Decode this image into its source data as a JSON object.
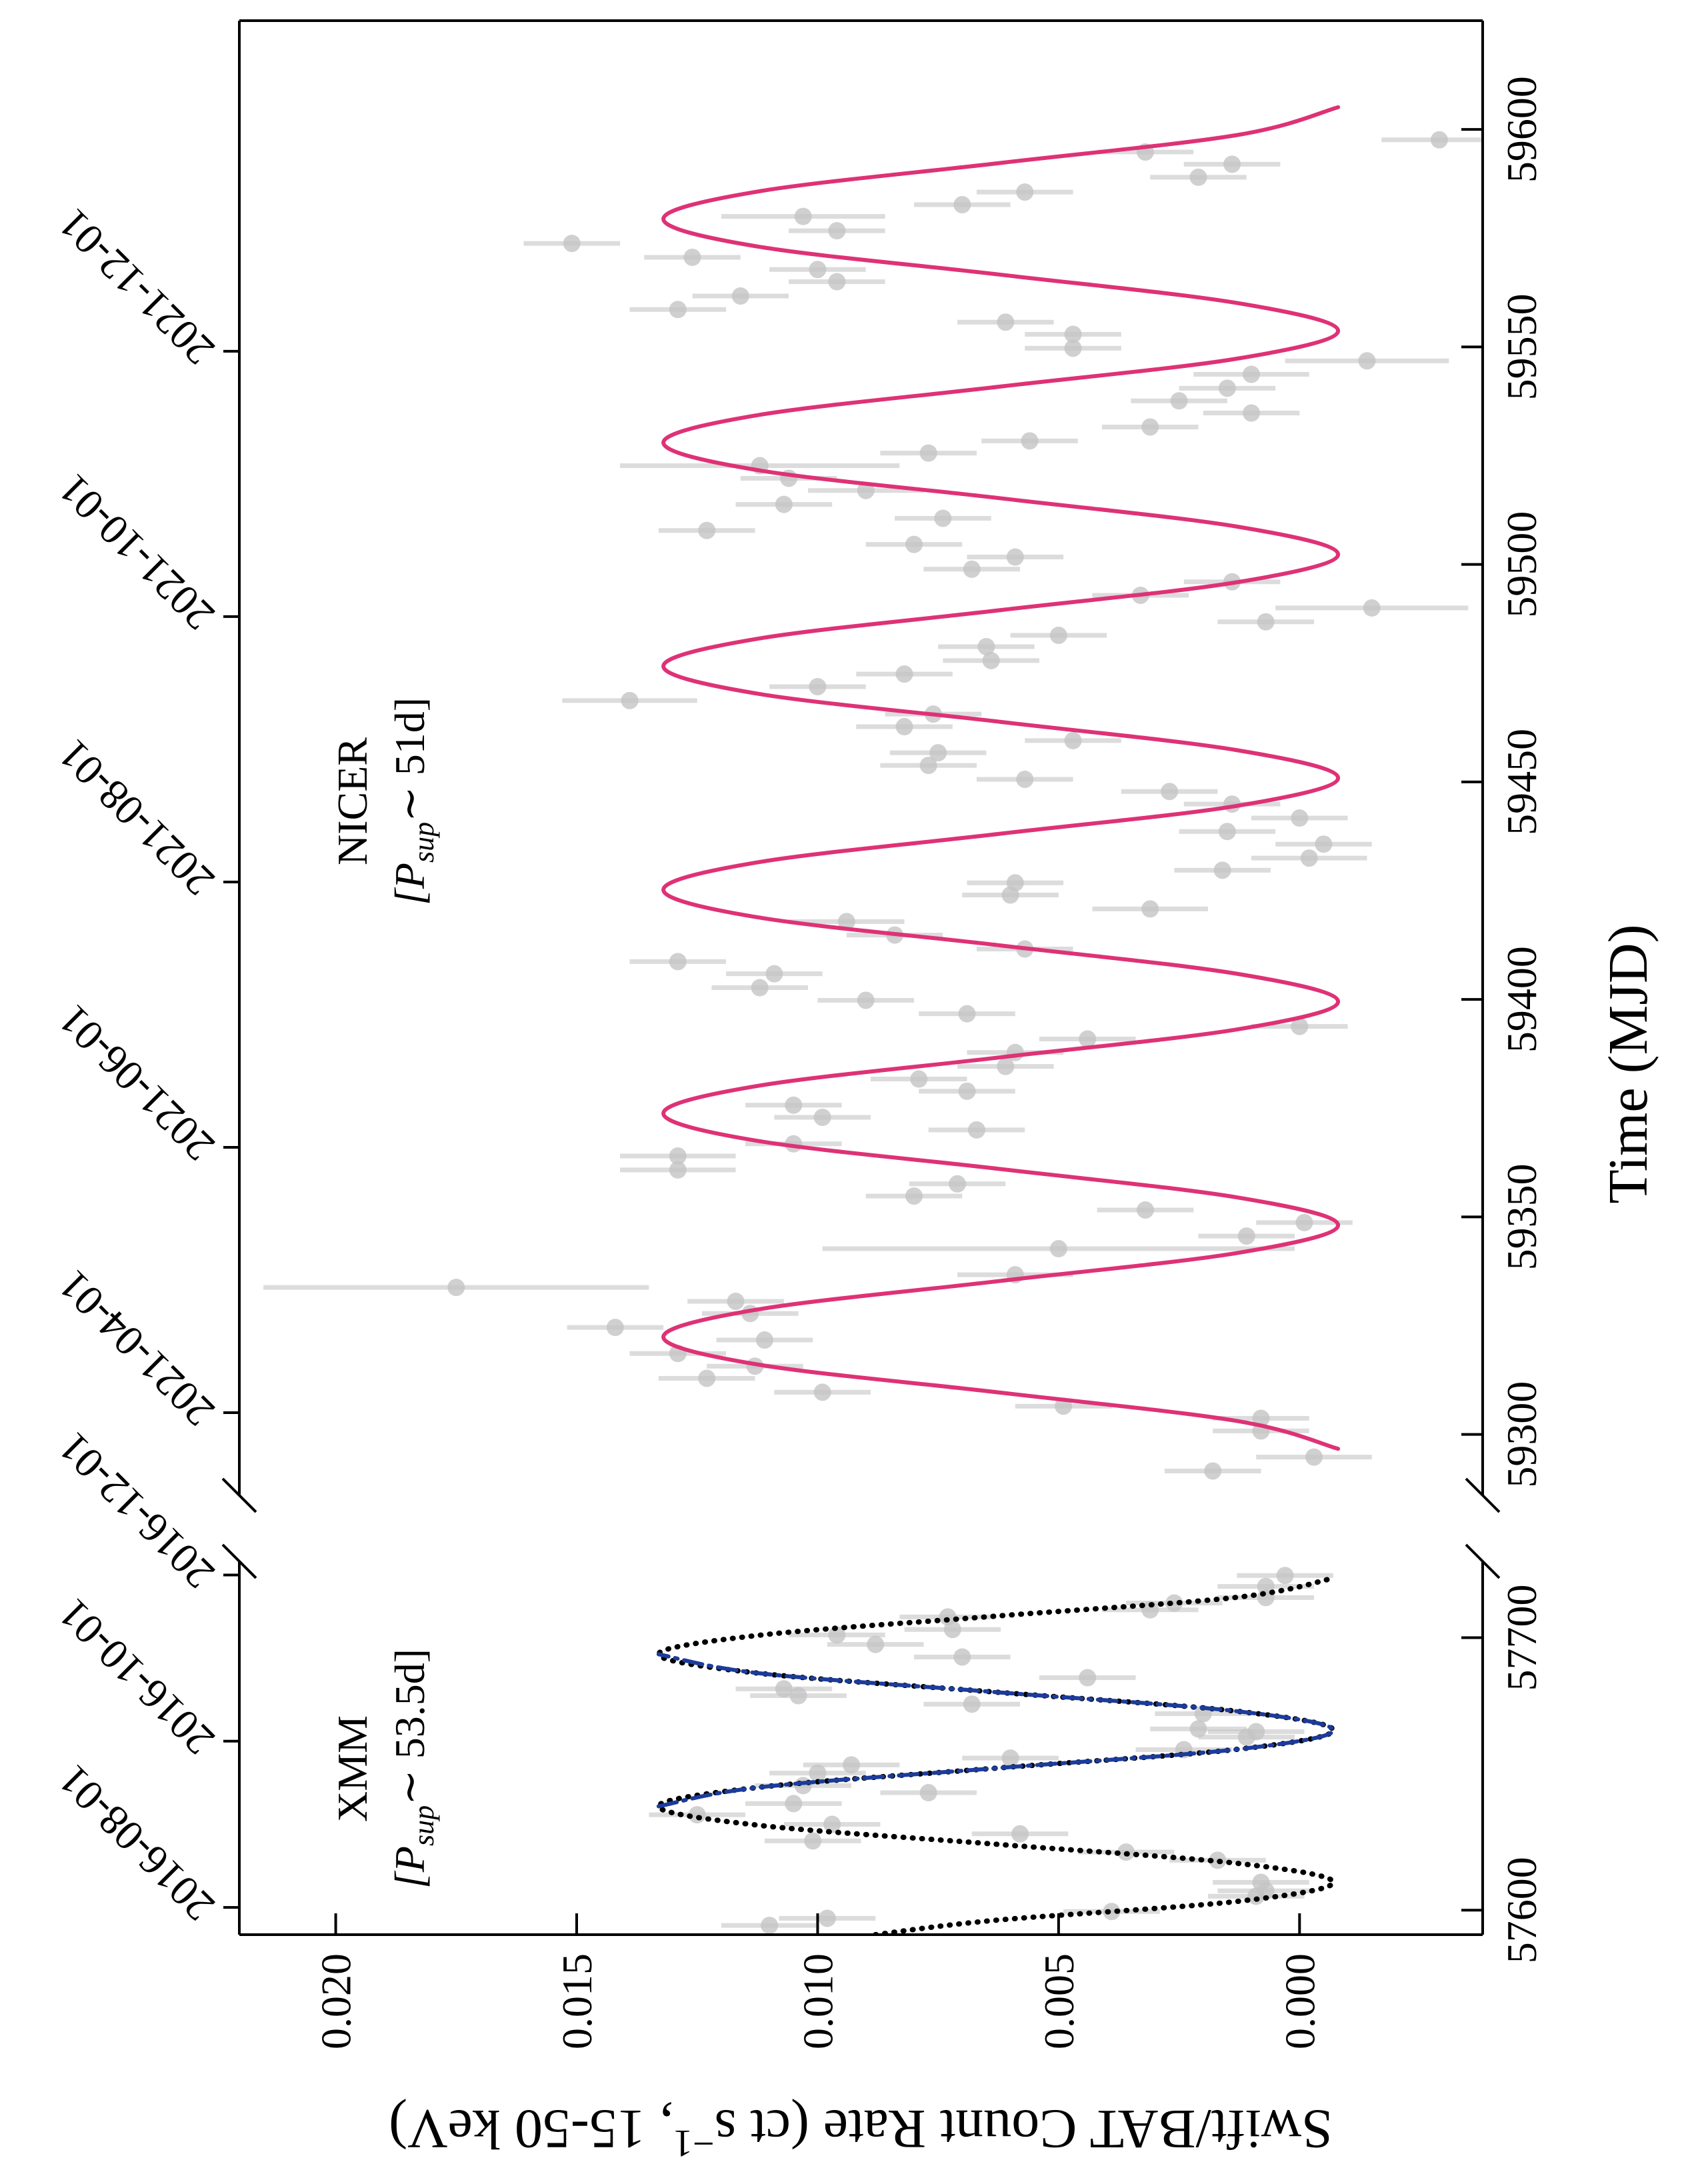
{
  "chart_data": [
    {
      "type": "scatter",
      "xlim": [
        57591,
        57728
      ],
      "xticks": [
        57600,
        57700
      ],
      "x2ticks": [
        {
          "value": 57601,
          "label": "2016-08-01"
        },
        {
          "value": 57662,
          "label": "2016-10-01"
        },
        {
          "value": 57723,
          "label": "2016-12-01"
        }
      ],
      "ylim": [
        -0.0038,
        0.022
      ],
      "yticks": [
        {
          "value": 0,
          "label": "0.000"
        },
        0.005,
        {
          "value": 0.01,
          "label": "0.010"
        },
        0.015,
        {
          "value": 0.02,
          "label": "0.020"
        }
      ],
      "ylabel": {
        "text": "Swift/BAT Count Rate (ct s",
        "sup": "−1",
        "rest": ", 15-50 keV)"
      },
      "annotation": {
        "name": "XMM",
        "prefix": "[P",
        "sub": "sup",
        "suffix": "∼ 53.5d]"
      },
      "points": {
        "color": "#c4c4c4",
        "x": [
          57594.4,
          57597.0,
          57599.5,
          57605.1,
          57607.1,
          57610.2,
          57618.3,
          57621.3,
          57625.4,
          57628.0,
          57631.5,
          57635.0,
          57639.1,
          57643.1,
          57645.7,
          57650.3,
          57653.3,
          57655.8,
          57658.9,
          57663.5,
          57665.5,
          57666.5,
          57672.1,
          57675.6,
          57678.7,
          57681.2,
          57685.3,
          57692.9,
          57697.5,
          57701.0,
          57703.0,
          57707.6,
          57710.2,
          57712.7,
          57714.7,
          57718.8,
          57722.8
        ],
        "values": [
          0.011,
          0.0098,
          0.0039,
          0.0009,
          0.0007,
          0.0008,
          0.0017,
          0.0036,
          0.0101,
          0.0058,
          0.0097,
          0.0125,
          0.0105,
          0.0077,
          0.0103,
          0.01,
          0.0093,
          0.006,
          0.0024,
          0.0011,
          0.0009,
          0.0021,
          0.002,
          0.0068,
          0.0104,
          0.0107,
          0.0044,
          0.007,
          0.0088,
          0.0096,
          0.0072,
          0.0073,
          0.0031,
          0.0026,
          0.0007,
          0.0007,
          0.0003
        ],
        "yerr": [
          0.001,
          0.001,
          0.001,
          0.001,
          0.001,
          0.001,
          0.001,
          0.001,
          0.001,
          0.001,
          0.001,
          0.001,
          0.001,
          0.001,
          0.001,
          0.001,
          0.001,
          0.001,
          0.001,
          0.001,
          0.001,
          0.001,
          0.001,
          0.001,
          0.001,
          0.001,
          0.001,
          0.001,
          0.001,
          0.001,
          0.001,
          0.001,
          0.001,
          0.001,
          0.001,
          0.001,
          0.001
        ]
      },
      "fits": [
        {
          "color": "#000000",
          "style": "dotted",
          "x": [
            57591.0,
            57596.3,
            57603.2,
            57610.2,
            57617.2,
            57624.2,
            57631.1,
            57638.1,
            57645.1,
            57652.1,
            57659.0,
            57666.0,
            57673.0,
            57680.0,
            57686.9,
            57693.9,
            57700.9,
            57707.9,
            57714.8,
            57721.8
          ],
          "values": [
            0.0088,
            0.0063,
            0.0013,
            -0.0007,
            0.0013,
            0.0063,
            0.0112,
            0.0133,
            0.0112,
            0.0063,
            0.0013,
            -0.0007,
            0.0013,
            0.0063,
            0.0112,
            0.0133,
            0.0112,
            0.0063,
            0.0013,
            -0.0007
          ]
        },
        {
          "color": "#1c3c9c",
          "style": "dashdot",
          "x": [
            57638.1,
            57645.1,
            57652.1,
            57659.0,
            57666.0,
            57673.0,
            57680.0,
            57686.9,
            57693.9
          ],
          "values": [
            0.0133,
            0.0112,
            0.0063,
            0.0013,
            -0.0007,
            0.0013,
            0.0063,
            0.0112,
            0.0133
          ]
        }
      ]
    },
    {
      "type": "scatter",
      "xlim": [
        59286,
        59625
      ],
      "xticks": [
        59300,
        59350,
        59400,
        59450,
        59500,
        59550,
        59600
      ],
      "x2ticks": [
        {
          "value": 59305,
          "label": "2021-04-01"
        },
        {
          "value": 59366,
          "label": "2021-06-01"
        },
        {
          "value": 59427,
          "label": "2021-08-01"
        },
        {
          "value": 59488,
          "label": "2021-10-01"
        },
        {
          "value": 59549,
          "label": "2021-12-01"
        }
      ],
      "ylim": [
        -0.0038,
        0.022
      ],
      "xlabel": "Time (MJD)",
      "annotation": {
        "name": "NICER",
        "prefix": "[P",
        "sub": "sup",
        "suffix": "∼ 51d]"
      },
      "points": {
        "color": "#c4c4c4",
        "x": [
          59291.6,
          59294.8,
          59300.8,
          59303.7,
          59306.5,
          59309.7,
          59312.9,
          59315.7,
          59318.6,
          59321.7,
          59324.6,
          59327.8,
          59330.6,
          59333.8,
          59336.7,
          59342.7,
          59345.6,
          59348.7,
          59351.6,
          59354.8,
          59357.6,
          59360.8,
          59364.0,
          59366.8,
          59370.0,
          59372.9,
          59375.7,
          59378.9,
          59381.7,
          59384.6,
          59387.8,
          59390.9,
          59393.8,
          59396.7,
          59399.8,
          59402.7,
          59405.9,
          59408.7,
          59411.6,
          59414.8,
          59417.9,
          59420.8,
          59424.0,
          59426.8,
          59429.7,
          59432.5,
          59435.7,
          59438.6,
          59441.7,
          59444.9,
          59447.8,
          59450.6,
          59453.8,
          59456.7,
          59459.5,
          59462.7,
          59465.6,
          59468.7,
          59471.9,
          59474.8,
          59477.9,
          59481.1,
          59483.7,
          59486.8,
          59490.0,
          59492.9,
          59496.0,
          59498.9,
          59501.7,
          59504.6,
          59507.8,
          59510.6,
          59513.8,
          59517.0,
          59519.8,
          59522.7,
          59525.6,
          59528.4,
          59531.6,
          59534.8,
          59537.6,
          59540.5,
          59543.7,
          59546.8,
          59549.7,
          59552.9,
          59555.7,
          59558.6,
          59561.7,
          59565.0,
          59567.8,
          59570.6,
          59573.8,
          59576.7,
          59580.0,
          59582.7,
          59585.6,
          59589.0,
          59592.0,
          59594.8,
          59597.6
        ],
        "values": [
          0.0018,
          -0.0003,
          0.0008,
          0.0008,
          0.0049,
          0.0099,
          0.0123,
          0.0113,
          0.0129,
          0.0111,
          0.0142,
          0.0114,
          0.0117,
          0.0175,
          0.0059,
          0.005,
          0.0011,
          -0.0001,
          0.0032,
          0.008,
          0.0071,
          0.0129,
          0.0129,
          0.0105,
          0.0067,
          0.0099,
          0.0105,
          0.0069,
          0.0079,
          0.0061,
          0.0059,
          0.0044,
          0.0,
          0.0069,
          0.009,
          0.0112,
          0.0109,
          0.0129,
          0.0057,
          0.0084,
          0.0094,
          0.0031,
          0.006,
          0.0059,
          0.0016,
          -0.0002,
          -0.0005,
          0.0015,
          0.0,
          0.0014,
          0.0027,
          0.0057,
          0.0077,
          0.0075,
          0.0047,
          0.0082,
          0.0076,
          0.0139,
          0.01,
          0.0082,
          0.0064,
          0.0065,
          0.005,
          0.0007,
          -0.0015,
          0.0033,
          0.0014,
          0.0068,
          0.0059,
          0.008,
          0.0123,
          0.0074,
          0.0107,
          0.009,
          0.0106,
          0.0112,
          0.0077,
          0.0056,
          0.0031,
          0.001,
          0.0025,
          0.0015,
          0.001,
          -0.0014,
          0.0047,
          0.0047,
          0.0061,
          0.0129,
          0.0116,
          0.0096,
          0.01,
          0.0126,
          0.0151,
          0.0096,
          0.0103,
          0.007,
          0.0057,
          0.0021,
          0.0014,
          0.0032,
          -0.0029
        ],
        "yerr": [
          0.001,
          0.0012,
          0.001,
          0.001,
          0.001,
          0.001,
          0.001,
          0.001,
          0.001,
          0.001,
          0.001,
          0.001,
          0.001,
          0.004,
          0.0012,
          0.0049,
          0.001,
          0.001,
          0.001,
          0.001,
          0.001,
          0.0012,
          0.0012,
          0.001,
          0.001,
          0.001,
          0.001,
          0.001,
          0.001,
          0.001,
          0.001,
          0.001,
          0.001,
          0.001,
          0.001,
          0.001,
          0.001,
          0.001,
          0.001,
          0.001,
          0.0012,
          0.0012,
          0.001,
          0.001,
          0.001,
          0.0012,
          0.001,
          0.001,
          0.001,
          0.001,
          0.001,
          0.001,
          0.001,
          0.001,
          0.001,
          0.001,
          0.001,
          0.0014,
          0.001,
          0.001,
          0.001,
          0.001,
          0.001,
          0.001,
          0.002,
          0.001,
          0.001,
          0.001,
          0.001,
          0.001,
          0.001,
          0.001,
          0.001,
          0.0012,
          0.001,
          0.0029,
          0.001,
          0.001,
          0.001,
          0.001,
          0.001,
          0.001,
          0.0012,
          0.0017,
          0.001,
          0.001,
          0.001,
          0.001,
          0.001,
          0.001,
          0.001,
          0.001,
          0.001,
          0.001,
          0.0017,
          0.001,
          0.001,
          0.001,
          0.001,
          0.001,
          0.0012
        ]
      },
      "fits": [
        {
          "color": "#de3276",
          "style": "solid",
          "x": [
            59296.7,
            59303.1,
            59309.6,
            59316.0,
            59322.4,
            59328.8,
            59335.3,
            59341.7,
            59348.1,
            59354.5,
            59361.0,
            59367.4,
            59373.8,
            59380.2,
            59386.7,
            59393.1,
            59399.5,
            59405.9,
            59412.4,
            59418.8,
            59425.2,
            59431.6,
            59438.1,
            59444.5,
            59450.9,
            59457.3,
            59463.8,
            59470.2,
            59476.6,
            59483.0,
            59489.5,
            59495.9,
            59502.3,
            59508.7,
            59515.2,
            59521.6,
            59528.0,
            59534.4,
            59540.9,
            59547.3,
            59553.7,
            59560.1,
            59566.6,
            59573.0,
            59579.4,
            59585.8,
            59592.3,
            59598.7,
            59605.1
          ],
          "values": [
            -0.0008,
            0.0013,
            0.0062,
            0.0112,
            0.0132,
            0.0112,
            0.0062,
            0.0013,
            -0.0008,
            0.0013,
            0.0062,
            0.0112,
            0.0132,
            0.0112,
            0.0062,
            0.0013,
            -0.0008,
            0.0013,
            0.0062,
            0.0112,
            0.0132,
            0.0112,
            0.0062,
            0.0013,
            -0.0008,
            0.0013,
            0.0062,
            0.0112,
            0.0132,
            0.0112,
            0.0062,
            0.0013,
            -0.0008,
            0.0013,
            0.0062,
            0.0112,
            0.0132,
            0.0112,
            0.0062,
            0.0013,
            -0.0008,
            0.0013,
            0.0062,
            0.0112,
            0.0132,
            0.0112,
            0.0062,
            0.0013,
            -0.0008
          ]
        }
      ]
    }
  ]
}
